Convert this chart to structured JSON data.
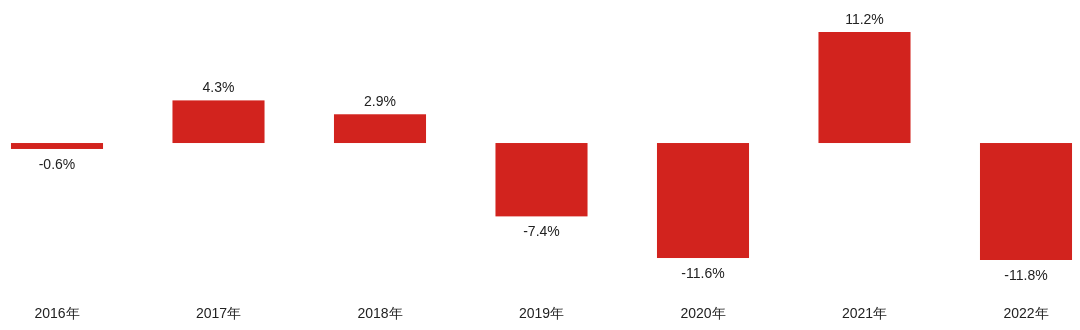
{
  "chart_data": {
    "type": "bar",
    "categories": [
      "2016年",
      "2017年",
      "2018年",
      "2019年",
      "2020年",
      "2021年",
      "2022年"
    ],
    "values": [
      -0.6,
      4.3,
      2.9,
      -7.4,
      -11.6,
      11.2,
      -11.8
    ],
    "value_labels": [
      "-0.6%",
      "4.3%",
      "2.9%",
      "-7.4%",
      "-11.6%",
      "11.2%",
      "-11.8%"
    ],
    "color": "#d2231e"
  }
}
